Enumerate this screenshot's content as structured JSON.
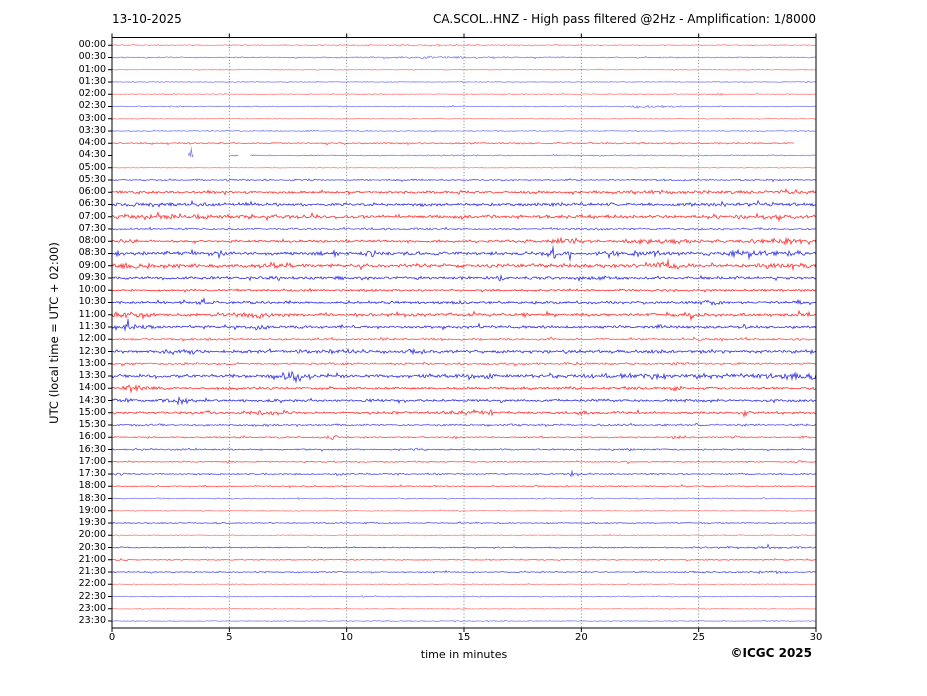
{
  "window": {
    "date": "13-10-2025",
    "title": "CA.SCOL..HNZ - High pass filtered @2Hz - Amplification: 1/8000"
  },
  "footer": {
    "xlabel": "time in minutes",
    "copyright": "©ICGC 2025"
  },
  "chart_data": {
    "type": "line",
    "subtype": "helicorder-seismogram",
    "title": "CA.SCOL..HNZ - High pass filtered @2Hz - Amplification: 1/8000",
    "date": "13-10-2025",
    "station": "CA.SCOL..HNZ",
    "filter": "High pass filtered @2Hz",
    "amplification": "1/8000",
    "xlabel": "time in minutes",
    "ylabel": "UTC (local time = UTC + 02:00)",
    "xlim": [
      0,
      30
    ],
    "x_ticks": [
      0,
      5,
      10,
      15,
      20,
      25,
      30
    ],
    "grid_minutes": [
      5,
      10,
      15,
      20,
      25
    ],
    "row_duration_minutes": 30,
    "colors": {
      "red": "#ff0000",
      "blue": "#0000dd",
      "grid": "#777777",
      "axis": "#000000"
    },
    "_events_format": "[center_minute, sigma_minutes, extra_amplitude_px]",
    "_segments_format": "[start_minute, end_minute] of recorded data (gaps elsewhere)",
    "rows": [
      {
        "time": "00:00",
        "color": "red",
        "amp": 0.5,
        "events": [
          [
            14,
            2.5,
            0.4
          ]
        ]
      },
      {
        "time": "00:30",
        "color": "blue",
        "amp": 0.5,
        "events": [
          [
            14,
            1.8,
            0.7
          ]
        ]
      },
      {
        "time": "01:00",
        "color": "red",
        "amp": 0.35,
        "events": []
      },
      {
        "time": "01:30",
        "color": "blue",
        "amp": 0.35,
        "events": []
      },
      {
        "time": "02:00",
        "color": "red",
        "amp": 0.45,
        "events": [
          [
            25.8,
            0.15,
            1.0
          ]
        ]
      },
      {
        "time": "02:30",
        "color": "blue",
        "amp": 0.5,
        "events": [
          [
            22.8,
            0.8,
            0.8
          ]
        ]
      },
      {
        "time": "03:00",
        "color": "red",
        "amp": 0.45,
        "events": []
      },
      {
        "time": "03:30",
        "color": "blue",
        "amp": 0.5,
        "events": [
          [
            8.5,
            0.15,
            1.0
          ]
        ]
      },
      {
        "time": "04:00",
        "color": "red",
        "amp": 0.7,
        "events": [],
        "segments": [
          [
            0,
            29.1
          ]
        ]
      },
      {
        "time": "04:30",
        "color": "blue",
        "amp": 0.5,
        "events": [
          [
            3.37,
            0.06,
            6.0
          ]
        ],
        "segments": [
          [
            3.25,
            3.5
          ],
          [
            5.0,
            5.4
          ],
          [
            5.9,
            30
          ]
        ]
      },
      {
        "time": "05:00",
        "color": "red",
        "amp": 0.4,
        "events": []
      },
      {
        "time": "05:30",
        "color": "blue",
        "amp": 0.7,
        "events": []
      },
      {
        "time": "06:00",
        "color": "red",
        "amp": 1.1,
        "events": [
          [
            24,
            4,
            0.5
          ],
          [
            29,
            0.5,
            0.7
          ]
        ]
      },
      {
        "time": "06:30",
        "color": "blue",
        "amp": 1.4,
        "events": [
          [
            2,
            2,
            0.4
          ],
          [
            27,
            1.5,
            0.5
          ]
        ]
      },
      {
        "time": "07:00",
        "color": "red",
        "amp": 1.5,
        "events": [
          [
            3.5,
            3,
            0.8
          ],
          [
            27.5,
            1.2,
            0.7
          ]
        ]
      },
      {
        "time": "07:30",
        "color": "blue",
        "amp": 0.9,
        "events": []
      },
      {
        "time": "08:00",
        "color": "red",
        "amp": 1.2,
        "events": [
          [
            0.5,
            0.5,
            0.8
          ],
          [
            19.3,
            0.5,
            1.4
          ],
          [
            23.8,
            1.2,
            1.5
          ],
          [
            28.5,
            1.2,
            1.4
          ]
        ]
      },
      {
        "time": "08:30",
        "color": "blue",
        "amp": 1.6,
        "events": [
          [
            0.4,
            0.15,
            2.0
          ],
          [
            4.6,
            0.2,
            2.2
          ],
          [
            11,
            0.2,
            1.6
          ],
          [
            18.8,
            0.12,
            4.5
          ],
          [
            19.4,
            0.15,
            2.0
          ],
          [
            21.3,
            0.15,
            1.6
          ],
          [
            22.4,
            0.15,
            1.8
          ],
          [
            23.2,
            0.12,
            2.2
          ],
          [
            26.6,
            0.15,
            2.5
          ],
          [
            27.2,
            0.12,
            3.5
          ],
          [
            27.8,
            0.12,
            4.0
          ],
          [
            28.3,
            0.15,
            2.8
          ],
          [
            29.1,
            0.2,
            1.6
          ]
        ]
      },
      {
        "time": "09:00",
        "color": "red",
        "amp": 1.7,
        "events": [
          [
            0.8,
            0.8,
            1.4
          ],
          [
            7.5,
            0.3,
            1.1
          ],
          [
            23.5,
            0.35,
            3.0
          ],
          [
            28.8,
            0.8,
            1.1
          ]
        ]
      },
      {
        "time": "09:30",
        "color": "blue",
        "amp": 1.3,
        "events": [
          [
            7,
            0.2,
            1.5
          ],
          [
            9.7,
            0.15,
            1.2
          ],
          [
            16.5,
            0.2,
            1.0
          ],
          [
            21,
            0.25,
            1.0
          ]
        ]
      },
      {
        "time": "10:00",
        "color": "red",
        "amp": 1.0,
        "events": []
      },
      {
        "time": "10:30",
        "color": "blue",
        "amp": 1.2,
        "events": [
          [
            3.7,
            0.35,
            2.0
          ],
          [
            14,
            0.2,
            1.0
          ],
          [
            25.5,
            0.3,
            1.5
          ],
          [
            29.3,
            0.2,
            1.2
          ]
        ]
      },
      {
        "time": "11:00",
        "color": "red",
        "amp": 1.4,
        "events": [
          [
            0.7,
            0.6,
            1.7
          ],
          [
            6,
            0.8,
            1.1
          ],
          [
            24.3,
            0.5,
            1.4
          ],
          [
            29.5,
            0.35,
            1.9
          ]
        ]
      },
      {
        "time": "11:30",
        "color": "blue",
        "amp": 1.2,
        "events": [
          [
            0.9,
            0.8,
            1.7
          ],
          [
            6.3,
            0.2,
            1.2
          ],
          [
            23.4,
            0.2,
            1.5
          ],
          [
            27,
            0.2,
            1.0
          ]
        ]
      },
      {
        "time": "12:00",
        "color": "red",
        "amp": 0.9,
        "events": [
          [
            4.3,
            0.15,
            0.9
          ],
          [
            14,
            0.15,
            0.9
          ],
          [
            21,
            0.15,
            0.9
          ],
          [
            25.1,
            0.15,
            1.0
          ]
        ]
      },
      {
        "time": "12:30",
        "color": "blue",
        "amp": 1.4,
        "events": [
          [
            2.8,
            0.8,
            1.2
          ],
          [
            10,
            2,
            0.5
          ],
          [
            13.1,
            0.2,
            1.7
          ],
          [
            23,
            0.25,
            1.0
          ],
          [
            26,
            0.2,
            1.0
          ]
        ]
      },
      {
        "time": "13:00",
        "color": "red",
        "amp": 0.9,
        "events": [
          [
            10,
            0.15,
            0.9
          ],
          [
            19.5,
            0.2,
            1.0
          ],
          [
            24,
            0.2,
            1.2
          ]
        ]
      },
      {
        "time": "13:30",
        "color": "blue",
        "amp": 1.6,
        "events": [
          [
            7.8,
            0.45,
            3.2
          ],
          [
            9.6,
            0.2,
            1.7
          ],
          [
            13.5,
            0.25,
            1.4
          ],
          [
            16,
            0.2,
            1.2
          ],
          [
            23,
            1.8,
            1.1
          ],
          [
            28.8,
            0.8,
            1.8
          ],
          [
            29.8,
            0.15,
            2.4
          ]
        ]
      },
      {
        "time": "14:00",
        "color": "red",
        "amp": 1.1,
        "events": [
          [
            1.0,
            0.4,
            2.6
          ],
          [
            19.5,
            0.2,
            1.1
          ],
          [
            24,
            0.2,
            1.0
          ]
        ]
      },
      {
        "time": "14:30",
        "color": "blue",
        "amp": 1.1,
        "events": [
          [
            0.5,
            0.4,
            1.1
          ],
          [
            2.9,
            0.4,
            2.1
          ],
          [
            11,
            0.2,
            1.0
          ],
          [
            21,
            0.2,
            0.9
          ],
          [
            28,
            0.2,
            1.1
          ]
        ]
      },
      {
        "time": "15:00",
        "color": "red",
        "amp": 1.0,
        "events": [
          [
            4.2,
            0.2,
            1.3
          ],
          [
            6.8,
            0.7,
            1.4
          ],
          [
            12,
            0.2,
            1.1
          ],
          [
            15.3,
            0.7,
            1.4
          ],
          [
            20,
            0.2,
            1.2
          ],
          [
            27,
            0.15,
            1.0
          ]
        ]
      },
      {
        "time": "15:30",
        "color": "blue",
        "amp": 0.9,
        "events": [
          [
            6.5,
            0.2,
            0.8
          ],
          [
            17,
            0.2,
            0.8
          ],
          [
            21,
            0.2,
            0.8
          ]
        ]
      },
      {
        "time": "16:00",
        "color": "red",
        "amp": 0.7,
        "events": [
          [
            9.4,
            0.15,
            1.7
          ],
          [
            14.5,
            0.2,
            1.2
          ],
          [
            24,
            0.15,
            0.9
          ],
          [
            26.6,
            0.12,
            1.5
          ],
          [
            29.5,
            0.15,
            1.2
          ]
        ]
      },
      {
        "time": "16:30",
        "color": "blue",
        "amp": 0.7,
        "events": [
          [
            13,
            0.2,
            0.6
          ],
          [
            22,
            0.2,
            0.6
          ]
        ]
      },
      {
        "time": "17:00",
        "color": "red",
        "amp": 0.55,
        "events": [
          [
            5,
            0.15,
            0.7
          ],
          [
            22,
            0.15,
            0.9
          ],
          [
            29.3,
            0.15,
            1.1
          ]
        ]
      },
      {
        "time": "17:30",
        "color": "blue",
        "amp": 0.7,
        "events": [
          [
            0.3,
            0.2,
            0.9
          ],
          [
            9.7,
            0.15,
            0.9
          ],
          [
            19.6,
            0.12,
            2.2
          ]
        ]
      },
      {
        "time": "18:00",
        "color": "red",
        "amp": 0.6,
        "events": [
          [
            4,
            0.15,
            0.6
          ],
          [
            18,
            0.15,
            0.6
          ]
        ]
      },
      {
        "time": "18:30",
        "color": "blue",
        "amp": 0.5,
        "events": []
      },
      {
        "time": "19:00",
        "color": "red",
        "amp": 0.45,
        "events": []
      },
      {
        "time": "19:30",
        "color": "blue",
        "amp": 0.55,
        "events": [
          [
            11,
            0.15,
            0.7
          ]
        ]
      },
      {
        "time": "20:00",
        "color": "red",
        "amp": 0.5,
        "events": []
      },
      {
        "time": "20:30",
        "color": "blue",
        "amp": 0.55,
        "events": [
          [
            27.5,
            1.6,
            0.7
          ]
        ]
      },
      {
        "time": "21:00",
        "color": "red",
        "amp": 0.55,
        "events": [
          [
            0.5,
            0.15,
            1.1
          ],
          [
            25.3,
            0.15,
            0.9
          ]
        ]
      },
      {
        "time": "21:30",
        "color": "blue",
        "amp": 0.55,
        "events": [
          [
            27,
            1.6,
            0.6
          ]
        ]
      },
      {
        "time": "22:00",
        "color": "red",
        "amp": 0.4,
        "events": []
      },
      {
        "time": "22:30",
        "color": "blue",
        "amp": 0.4,
        "events": []
      },
      {
        "time": "23:00",
        "color": "red",
        "amp": 0.4,
        "events": []
      },
      {
        "time": "23:30",
        "color": "blue",
        "amp": 0.4,
        "events": []
      }
    ]
  }
}
